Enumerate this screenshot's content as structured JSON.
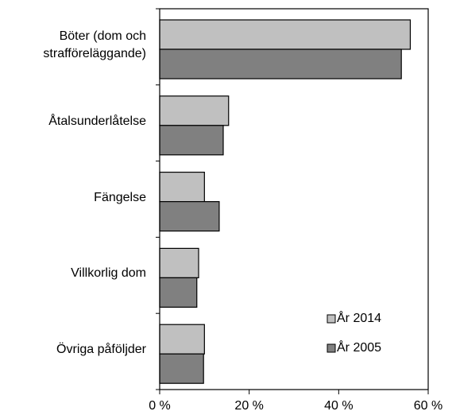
{
  "chart_data": {
    "type": "bar",
    "orientation": "horizontal",
    "categories": [
      "Böter (dom och strafföreläggande)",
      "Åtalsunderlåtelse",
      "Fängelse",
      "Villkorlig dom",
      "Övriga påföljder"
    ],
    "series": [
      {
        "name": "År 2014",
        "color": "#c0c0c0",
        "values": [
          56,
          15.4,
          10,
          8.7,
          10
        ]
      },
      {
        "name": "År 2005",
        "color": "#808080",
        "values": [
          54,
          14.2,
          13.3,
          8.3,
          9.8
        ]
      }
    ],
    "xlim": [
      0,
      60
    ],
    "xticks": [
      {
        "value": 0,
        "label": "0 %"
      },
      {
        "value": 20,
        "label": "20 %"
      },
      {
        "value": 40,
        "label": "40 %"
      },
      {
        "value": 60,
        "label": "60 %"
      }
    ],
    "legend": "lower right"
  }
}
